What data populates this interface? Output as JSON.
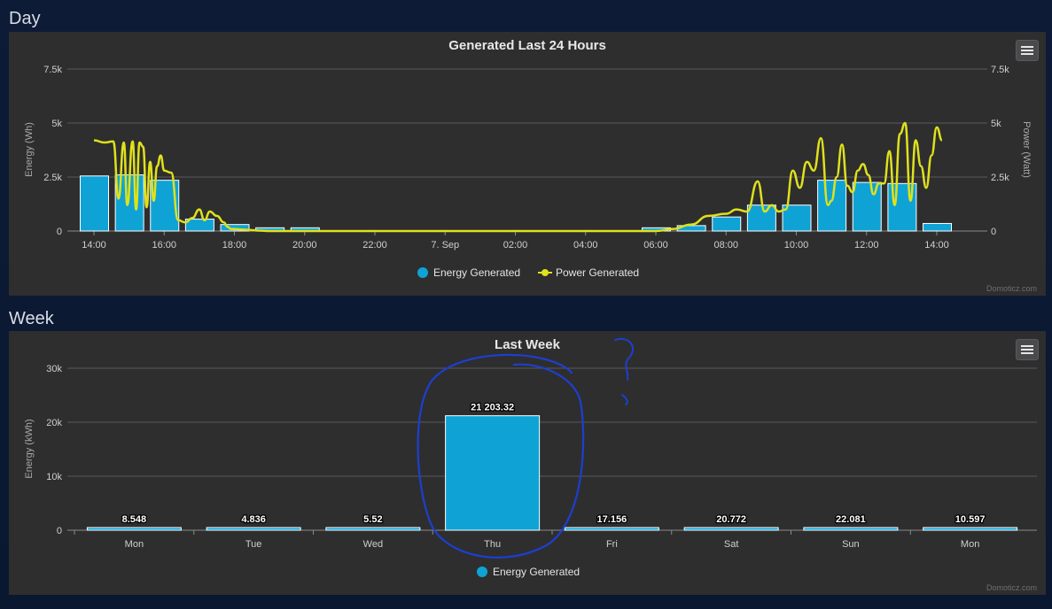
{
  "sections": {
    "day_title": "Day",
    "week_title": "Week"
  },
  "credit": "Domoticz.com",
  "colors": {
    "energy": "#0fa3d5",
    "power": "#dfe11b",
    "panel": "#2e2e2f",
    "grid": "#5b5b5d",
    "text": "#cfcfcf"
  },
  "chart_data": [
    {
      "type": "bar",
      "title": "Generated Last 24 Hours",
      "ylabel": "Energy (Wh)",
      "y2label": "Power (Watt)",
      "ylim": [
        0,
        7500
      ],
      "y2lim": [
        0,
        7500
      ],
      "yticks": [
        "0",
        "2.5k",
        "5k",
        "7.5k"
      ],
      "y2ticks": [
        "0",
        "2.5k",
        "5k",
        "7.5k"
      ],
      "xticks": [
        "14:00",
        "16:00",
        "18:00",
        "20:00",
        "22:00",
        "7. Sep",
        "02:00",
        "04:00",
        "06:00",
        "08:00",
        "10:00",
        "12:00",
        "14:00"
      ],
      "grid": true,
      "legend_position": "bottom-center",
      "series": [
        {
          "name": "Energy Generated",
          "type": "bar",
          "x_hours": [
            0,
            1,
            2,
            3,
            4,
            5,
            6,
            7,
            8,
            9,
            10,
            11,
            12,
            13,
            14,
            15,
            16,
            17,
            18,
            19,
            20,
            21,
            22,
            23,
            24
          ],
          "values": [
            2550,
            2600,
            2350,
            550,
            300,
            150,
            150,
            0,
            0,
            0,
            0,
            0,
            0,
            0,
            0,
            0,
            150,
            250,
            650,
            1200,
            1200,
            2350,
            2250,
            2200,
            350
          ]
        },
        {
          "name": "Power Generated",
          "type": "line",
          "x_hours": [
            0,
            0.3,
            0.55,
            0.7,
            0.85,
            0.95,
            1.1,
            1.2,
            1.3,
            1.4,
            1.5,
            1.6,
            1.7,
            1.8,
            1.9,
            2.0,
            2.2,
            2.4,
            2.6,
            2.8,
            3.0,
            3.15,
            3.3,
            3.5,
            3.7,
            3.8,
            3.9,
            4.1,
            4.3,
            4.5,
            4.7,
            5.0,
            5.5,
            6.0,
            7.0,
            16.0,
            16.5,
            17.0,
            17.5,
            18.0,
            18.3,
            18.6,
            18.9,
            19.1,
            19.3,
            19.5,
            19.7,
            19.9,
            20.1,
            20.3,
            20.5,
            20.7,
            20.9,
            21.0,
            21.15,
            21.3,
            21.45,
            21.6,
            21.75,
            21.9,
            22.05,
            22.2,
            22.35,
            22.5,
            22.65,
            22.8,
            22.95,
            23.1,
            23.25,
            23.4,
            23.55,
            23.7,
            23.85,
            24.0,
            24.15
          ],
          "values": [
            4200,
            4100,
            4150,
            1500,
            4100,
            1200,
            4150,
            1000,
            4100,
            3900,
            1100,
            3200,
            1400,
            3000,
            3500,
            2800,
            2700,
            500,
            400,
            600,
            1000,
            500,
            900,
            700,
            400,
            200,
            100,
            80,
            60,
            40,
            20,
            0,
            0,
            0,
            0,
            0,
            100,
            300,
            700,
            800,
            1000,
            900,
            2300,
            900,
            1200,
            900,
            1000,
            2800,
            2000,
            3200,
            2800,
            4300,
            1200,
            1400,
            2500,
            4000,
            2100,
            1800,
            2800,
            3100,
            2600,
            1700,
            2200,
            2200,
            3700,
            1200,
            4500,
            5000,
            1400,
            4200,
            3000,
            2000,
            3500,
            4800,
            4200
          ]
        }
      ]
    },
    {
      "type": "bar",
      "title": "Last Week",
      "ylabel": "Energy (kWh)",
      "ylim": [
        0,
        30000
      ],
      "yticks": [
        "0",
        "10k",
        "20k",
        "30k"
      ],
      "categories": [
        "Mon",
        "Tue",
        "Wed",
        "Thu",
        "Fri",
        "Sat",
        "Sun",
        "Mon"
      ],
      "grid": true,
      "legend_position": "bottom-center",
      "series": [
        {
          "name": "Energy Generated",
          "values": [
            8.548,
            4.836,
            5.52,
            21203.32,
            17.156,
            20.772,
            22.081,
            10.597
          ],
          "labels": [
            "8.548",
            "4.836",
            "5.52",
            "21 203.32",
            "17.156",
            "20.772",
            "22.081",
            "10.597"
          ]
        }
      ],
      "annotation": "?"
    }
  ]
}
